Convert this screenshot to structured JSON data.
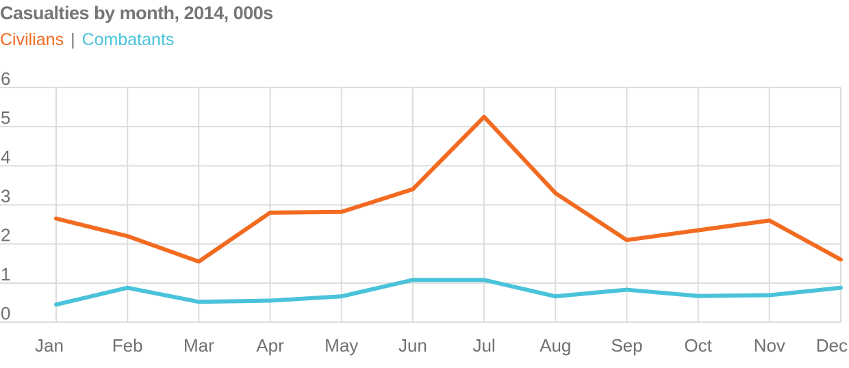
{
  "chart_data": {
    "type": "line",
    "title": "Casualties by month, 2014, 000s",
    "categories": [
      "Jan",
      "Feb",
      "Mar",
      "Apr",
      "May",
      "Jun",
      "Jul",
      "Aug",
      "Sep",
      "Oct",
      "Nov",
      "Dec"
    ],
    "series": [
      {
        "name": "Civilians",
        "color": "#f26b21",
        "values": [
          2.65,
          2.2,
          1.55,
          2.8,
          2.82,
          3.4,
          5.25,
          3.3,
          2.1,
          2.35,
          2.6,
          1.6
        ]
      },
      {
        "name": "Combatants",
        "color": "#4ac3da",
        "values": [
          0.45,
          0.88,
          0.52,
          0.55,
          0.66,
          1.08,
          1.08,
          0.66,
          0.83,
          0.67,
          0.69,
          0.88
        ]
      }
    ],
    "y_ticks": [
      "0",
      "1",
      "2",
      "3",
      "4",
      "5",
      "6"
    ],
    "ylim": [
      0,
      6
    ],
    "grid": true,
    "legend_position": "top-left"
  }
}
